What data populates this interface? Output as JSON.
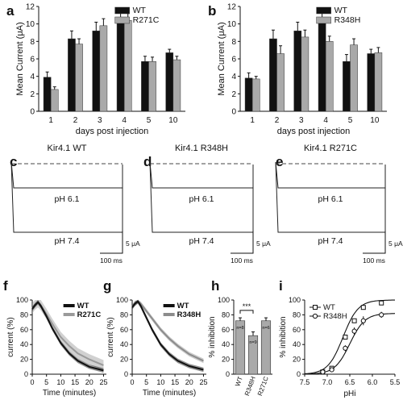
{
  "panels": [
    {
      "id": "a",
      "letter": "a",
      "type": "bar",
      "ylabel": "Mean Current (μA)",
      "xlabel": "days post injection",
      "ylim": [
        0,
        12
      ],
      "yticks": [
        0,
        2,
        4,
        6,
        8,
        10,
        12
      ],
      "categories": [
        "1",
        "2",
        "3",
        "4",
        "5",
        "10"
      ],
      "legend": [
        "WT",
        "R271C"
      ],
      "series": [
        {
          "name": "WT",
          "color": "#111111",
          "values": [
            3.9,
            8.3,
            9.2,
            10.4,
            5.7,
            6.7
          ],
          "errors": [
            0.6,
            0.9,
            1.0,
            0.9,
            0.6,
            0.4
          ]
        },
        {
          "name": "R271C",
          "color": "#a9a9a9",
          "values": [
            2.5,
            7.7,
            9.8,
            10.4,
            5.7,
            5.9
          ],
          "errors": [
            0.3,
            0.6,
            0.8,
            0.8,
            0.5,
            0.4
          ]
        }
      ]
    },
    {
      "id": "b",
      "letter": "b",
      "type": "bar",
      "ylabel": "Mean Current (μA)",
      "xlabel": "days post injection",
      "ylim": [
        0,
        12
      ],
      "yticks": [
        0,
        2,
        4,
        6,
        8,
        10,
        12
      ],
      "categories": [
        "1",
        "2",
        "3",
        "4",
        "5",
        "10"
      ],
      "legend": [
        "WT",
        "R348H"
      ],
      "series": [
        {
          "name": "WT",
          "color": "#111111",
          "values": [
            3.8,
            8.3,
            9.2,
            10.5,
            5.7,
            6.6
          ],
          "errors": [
            0.6,
            1.0,
            1.0,
            0.9,
            0.8,
            0.5
          ]
        },
        {
          "name": "R348H",
          "color": "#a9a9a9",
          "values": [
            3.7,
            6.6,
            8.5,
            8.0,
            7.6,
            6.7
          ],
          "errors": [
            0.3,
            0.9,
            0.8,
            0.6,
            0.7,
            0.6
          ]
        }
      ]
    },
    {
      "id": "c",
      "letter": "c",
      "type": "traces",
      "title": "Kir4.1 WT",
      "label_top": "pH 6.1",
      "label_bottom": "pH 7.4",
      "scale_y": "5 μA",
      "scale_x": "100 ms"
    },
    {
      "id": "d",
      "letter": "d",
      "type": "traces",
      "title": "Kir4.1 R348H",
      "label_top": "pH 6.1",
      "label_bottom": "pH 7.4",
      "scale_y": "5 μA",
      "scale_x": "100 ms"
    },
    {
      "id": "e",
      "letter": "e",
      "type": "traces",
      "title": "Kir4.1 R271C",
      "label_top": "pH 6.1",
      "label_bottom": "pH 7.4",
      "scale_y": "5 μA",
      "scale_x": "100 ms"
    },
    {
      "id": "f",
      "letter": "f",
      "type": "line",
      "ylabel": "current (%)",
      "xlabel": "Time (minutes)",
      "xlim": [
        0,
        26
      ],
      "ylim": [
        0,
        100
      ],
      "xticks": [
        0,
        5,
        10,
        15,
        20,
        25
      ],
      "yticks": [
        0,
        20,
        40,
        60,
        80,
        100
      ],
      "legend": [
        "WT",
        "R271C"
      ],
      "series": [
        {
          "name": "WT",
          "color": "#111111",
          "x": [
            0,
            1,
            2,
            3,
            5,
            7,
            10,
            13,
            16,
            20,
            25
          ],
          "y": [
            88,
            93,
            97,
            92,
            78,
            62,
            42,
            28,
            18,
            10,
            5
          ],
          "band": 3
        },
        {
          "name": "R271C",
          "color": "#9a9a9a",
          "x": [
            0,
            1,
            2,
            3,
            5,
            7,
            10,
            13,
            16,
            20,
            25
          ],
          "y": [
            89,
            94,
            97,
            93,
            81,
            68,
            50,
            38,
            28,
            20,
            12
          ],
          "band": 7
        }
      ]
    },
    {
      "id": "g",
      "letter": "g",
      "type": "line",
      "ylabel": "current (%)",
      "xlabel": "Time (minutes)",
      "xlim": [
        0,
        26
      ],
      "ylim": [
        0,
        100
      ],
      "xticks": [
        0,
        5,
        10,
        15,
        20,
        25
      ],
      "yticks": [
        0,
        20,
        40,
        60,
        80,
        100
      ],
      "legend": [
        "WT",
        "R348H"
      ],
      "series": [
        {
          "name": "WT",
          "color": "#111111",
          "x": [
            0,
            1,
            2,
            3,
            5,
            7,
            10,
            13,
            16,
            20,
            25
          ],
          "y": [
            90,
            95,
            98,
            92,
            76,
            60,
            40,
            27,
            18,
            11,
            6
          ],
          "band": 3
        },
        {
          "name": "R348H",
          "color": "#8c8c8c",
          "x": [
            0,
            1,
            2,
            3,
            5,
            7,
            10,
            13,
            16,
            20,
            25
          ],
          "y": [
            91,
            96,
            99,
            95,
            85,
            75,
            60,
            48,
            38,
            27,
            18
          ],
          "band": 3
        }
      ]
    },
    {
      "id": "h",
      "letter": "h",
      "type": "bar",
      "ylabel": "% inhibition",
      "ylim": [
        0,
        100
      ],
      "yticks": [
        0,
        20,
        40,
        60,
        80,
        100
      ],
      "categories": [
        "WT",
        "R348H",
        "R271C"
      ],
      "values": [
        72,
        52,
        72
      ],
      "errors": [
        4,
        5,
        4
      ],
      "n_labels": [
        "n=8",
        "n=9",
        "n=6"
      ],
      "significance": "***",
      "colors": [
        "#a9a9a9",
        "#a9a9a9",
        "#a9a9a9"
      ]
    },
    {
      "id": "i",
      "letter": "i",
      "type": "scatter",
      "ylabel": "% inhibition",
      "xlabel": "pHi",
      "xlim": [
        7.5,
        5.5
      ],
      "ylim": [
        0,
        100
      ],
      "xticks": [
        7.5,
        7.0,
        6.5,
        6.0,
        5.5
      ],
      "xtick_labels": [
        "7.5",
        "7.0",
        "6.5",
        "6.0",
        "5.5"
      ],
      "yticks": [
        0,
        20,
        40,
        60,
        80,
        100
      ],
      "legend": [
        "WT",
        "R348H"
      ],
      "series": [
        {
          "name": "WT",
          "marker": "square",
          "x": [
            7.1,
            6.9,
            6.6,
            6.4,
            6.2,
            5.8
          ],
          "y": [
            3,
            8,
            50,
            72,
            90,
            96
          ],
          "errors": [
            1,
            2,
            3,
            3,
            3,
            2
          ],
          "fit": "sigmoid",
          "pKa": 6.65,
          "hill": 2.6,
          "top": 100
        },
        {
          "name": "R348H",
          "marker": "circle",
          "x": [
            7.1,
            6.9,
            6.6,
            6.4,
            6.2,
            5.8
          ],
          "y": [
            3,
            6,
            35,
            58,
            72,
            80
          ],
          "errors": [
            1,
            2,
            4,
            5,
            6,
            4
          ],
          "fit": "sigmoid",
          "pKa": 6.5,
          "hill": 2.6,
          "top": 82
        }
      ]
    }
  ],
  "chart_data": [
    {
      "panel": "a",
      "type": "bar",
      "categories": [
        "1",
        "2",
        "3",
        "4",
        "5",
        "10"
      ],
      "series": [
        {
          "name": "WT",
          "values": [
            3.9,
            8.3,
            9.2,
            10.4,
            5.7,
            6.7
          ]
        },
        {
          "name": "R271C",
          "values": [
            2.5,
            7.7,
            9.8,
            10.4,
            5.7,
            5.9
          ]
        }
      ],
      "xlabel": "days post injection",
      "ylabel": "Mean Current (μA)",
      "ylim": [
        0,
        12
      ],
      "legend_position": "top-right"
    },
    {
      "panel": "b",
      "type": "bar",
      "categories": [
        "1",
        "2",
        "3",
        "4",
        "5",
        "10"
      ],
      "series": [
        {
          "name": "WT",
          "values": [
            3.8,
            8.3,
            9.2,
            10.5,
            5.7,
            6.6
          ]
        },
        {
          "name": "R348H",
          "values": [
            3.7,
            6.6,
            8.5,
            8.0,
            7.6,
            6.7
          ]
        }
      ],
      "xlabel": "days post injection",
      "ylabel": "Mean Current (μA)",
      "ylim": [
        0,
        12
      ],
      "legend_position": "top-right"
    },
    {
      "panel": "f",
      "type": "line",
      "series": [
        {
          "name": "WT",
          "x": [
            0,
            1,
            2,
            3,
            5,
            7,
            10,
            13,
            16,
            20,
            25
          ],
          "y": [
            88,
            93,
            97,
            92,
            78,
            62,
            42,
            28,
            18,
            10,
            5
          ]
        },
        {
          "name": "R271C",
          "x": [
            0,
            1,
            2,
            3,
            5,
            7,
            10,
            13,
            16,
            20,
            25
          ],
          "y": [
            89,
            94,
            97,
            93,
            81,
            68,
            50,
            38,
            28,
            20,
            12
          ]
        }
      ],
      "xlabel": "Time (minutes)",
      "ylabel": "current (%)",
      "xlim": [
        0,
        26
      ],
      "ylim": [
        0,
        100
      ],
      "legend_position": "top-right"
    },
    {
      "panel": "g",
      "type": "line",
      "series": [
        {
          "name": "WT",
          "x": [
            0,
            1,
            2,
            3,
            5,
            7,
            10,
            13,
            16,
            20,
            25
          ],
          "y": [
            90,
            95,
            98,
            92,
            76,
            60,
            40,
            27,
            18,
            11,
            6
          ]
        },
        {
          "name": "R348H",
          "x": [
            0,
            1,
            2,
            3,
            5,
            7,
            10,
            13,
            16,
            20,
            25
          ],
          "y": [
            91,
            96,
            99,
            95,
            85,
            75,
            60,
            48,
            38,
            27,
            18
          ]
        }
      ],
      "xlabel": "Time (minutes)",
      "ylabel": "current (%)",
      "xlim": [
        0,
        26
      ],
      "ylim": [
        0,
        100
      ],
      "legend_position": "top-right"
    },
    {
      "panel": "h",
      "type": "bar",
      "categories": [
        "WT",
        "R348H",
        "R271C"
      ],
      "values": [
        72,
        52,
        72
      ],
      "ylabel": "% inhibition",
      "ylim": [
        0,
        100
      ]
    },
    {
      "panel": "i",
      "type": "scatter",
      "series": [
        {
          "name": "WT",
          "x": [
            7.1,
            6.9,
            6.6,
            6.4,
            6.2,
            5.8
          ],
          "y": [
            3,
            8,
            50,
            72,
            90,
            96
          ]
        },
        {
          "name": "R348H",
          "x": [
            7.1,
            6.9,
            6.6,
            6.4,
            6.2,
            5.8
          ],
          "y": [
            3,
            6,
            35,
            58,
            72,
            80
          ]
        }
      ],
      "xlabel": "pHi",
      "ylabel": "% inhibition",
      "xlim": [
        7.5,
        5.5
      ],
      "ylim": [
        0,
        100
      ],
      "legend_position": "top-left"
    }
  ]
}
